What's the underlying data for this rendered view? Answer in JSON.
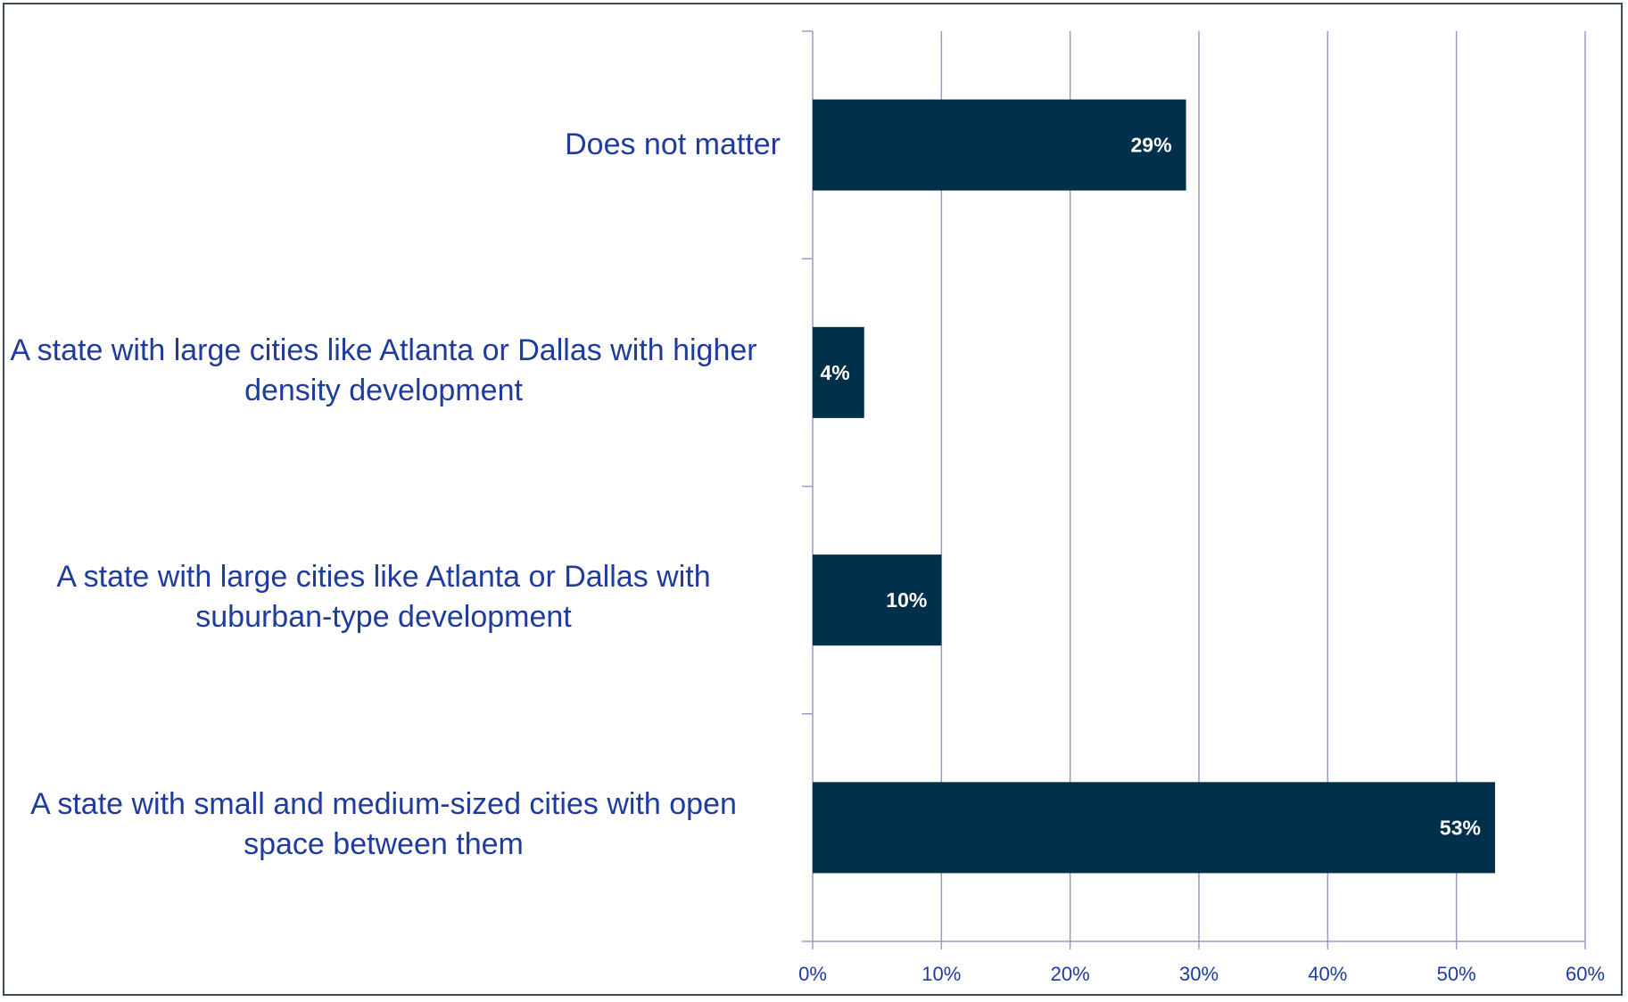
{
  "chart_data": {
    "type": "bar",
    "orientation": "horizontal",
    "categories": [
      "Does not matter",
      "A state with large cities like Atlanta or Dallas with higher density development",
      "A state with large cities like Atlanta or Dallas with suburban-type development",
      "A state with small and medium-sized cities with open space between them"
    ],
    "values": [
      29,
      4,
      10,
      53
    ],
    "value_labels": [
      "29%",
      "4%",
      "10%",
      "53%"
    ],
    "xlim": [
      0,
      60
    ],
    "xticks": [
      0,
      10,
      20,
      30,
      40,
      50,
      60
    ],
    "xtick_labels": [
      "0%",
      "10%",
      "20%",
      "30%",
      "40%",
      "50%",
      "60%"
    ],
    "title": "",
    "xlabel": "",
    "ylabel": "",
    "grid": true,
    "legend": "none",
    "colors": {
      "bar": "#00304a",
      "grid": "#9a9ac8",
      "axis_text": "#1f3b9c",
      "value_text": "#ffffff"
    }
  }
}
